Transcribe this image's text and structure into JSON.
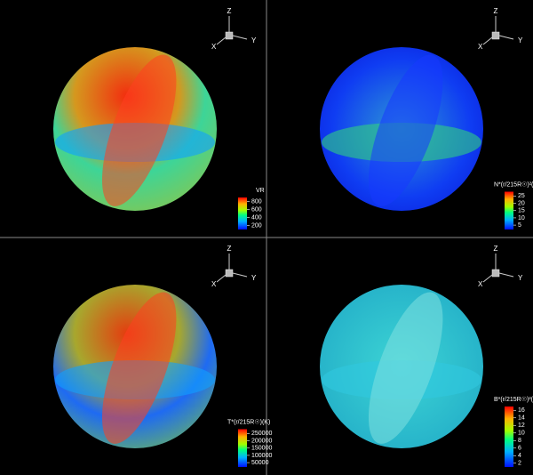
{
  "panels": [
    {
      "triad": {
        "x": "X",
        "y": "Y",
        "z": "Z"
      },
      "colorbar": {
        "title": "VR",
        "lim": [
          100,
          900
        ],
        "ticks": [
          800,
          600,
          400,
          200
        ]
      }
    },
    {
      "triad": {
        "x": "X",
        "y": "Y",
        "z": "Z"
      },
      "colorbar": {
        "title": "N*(r/215R☉)²(cm⁻³)",
        "lim": [
          2,
          28
        ],
        "ticks": [
          25,
          20,
          15,
          10,
          5
        ]
      }
    },
    {
      "triad": {
        "x": "X",
        "y": "Y",
        "z": "Z"
      },
      "colorbar": {
        "title": "T*(r/215R☉)(K)",
        "lim": [
          20000,
          280000
        ],
        "ticks": [
          250000,
          200000,
          150000,
          100000,
          50000
        ]
      }
    },
    {
      "triad": {
        "x": "X",
        "y": "Y",
        "z": "Z"
      },
      "colorbar": {
        "title": "B*(r/215R☉)²(nT)",
        "lim": [
          1,
          17
        ],
        "ticks": [
          16,
          14,
          12,
          10,
          8,
          6,
          4,
          2
        ]
      }
    }
  ]
}
